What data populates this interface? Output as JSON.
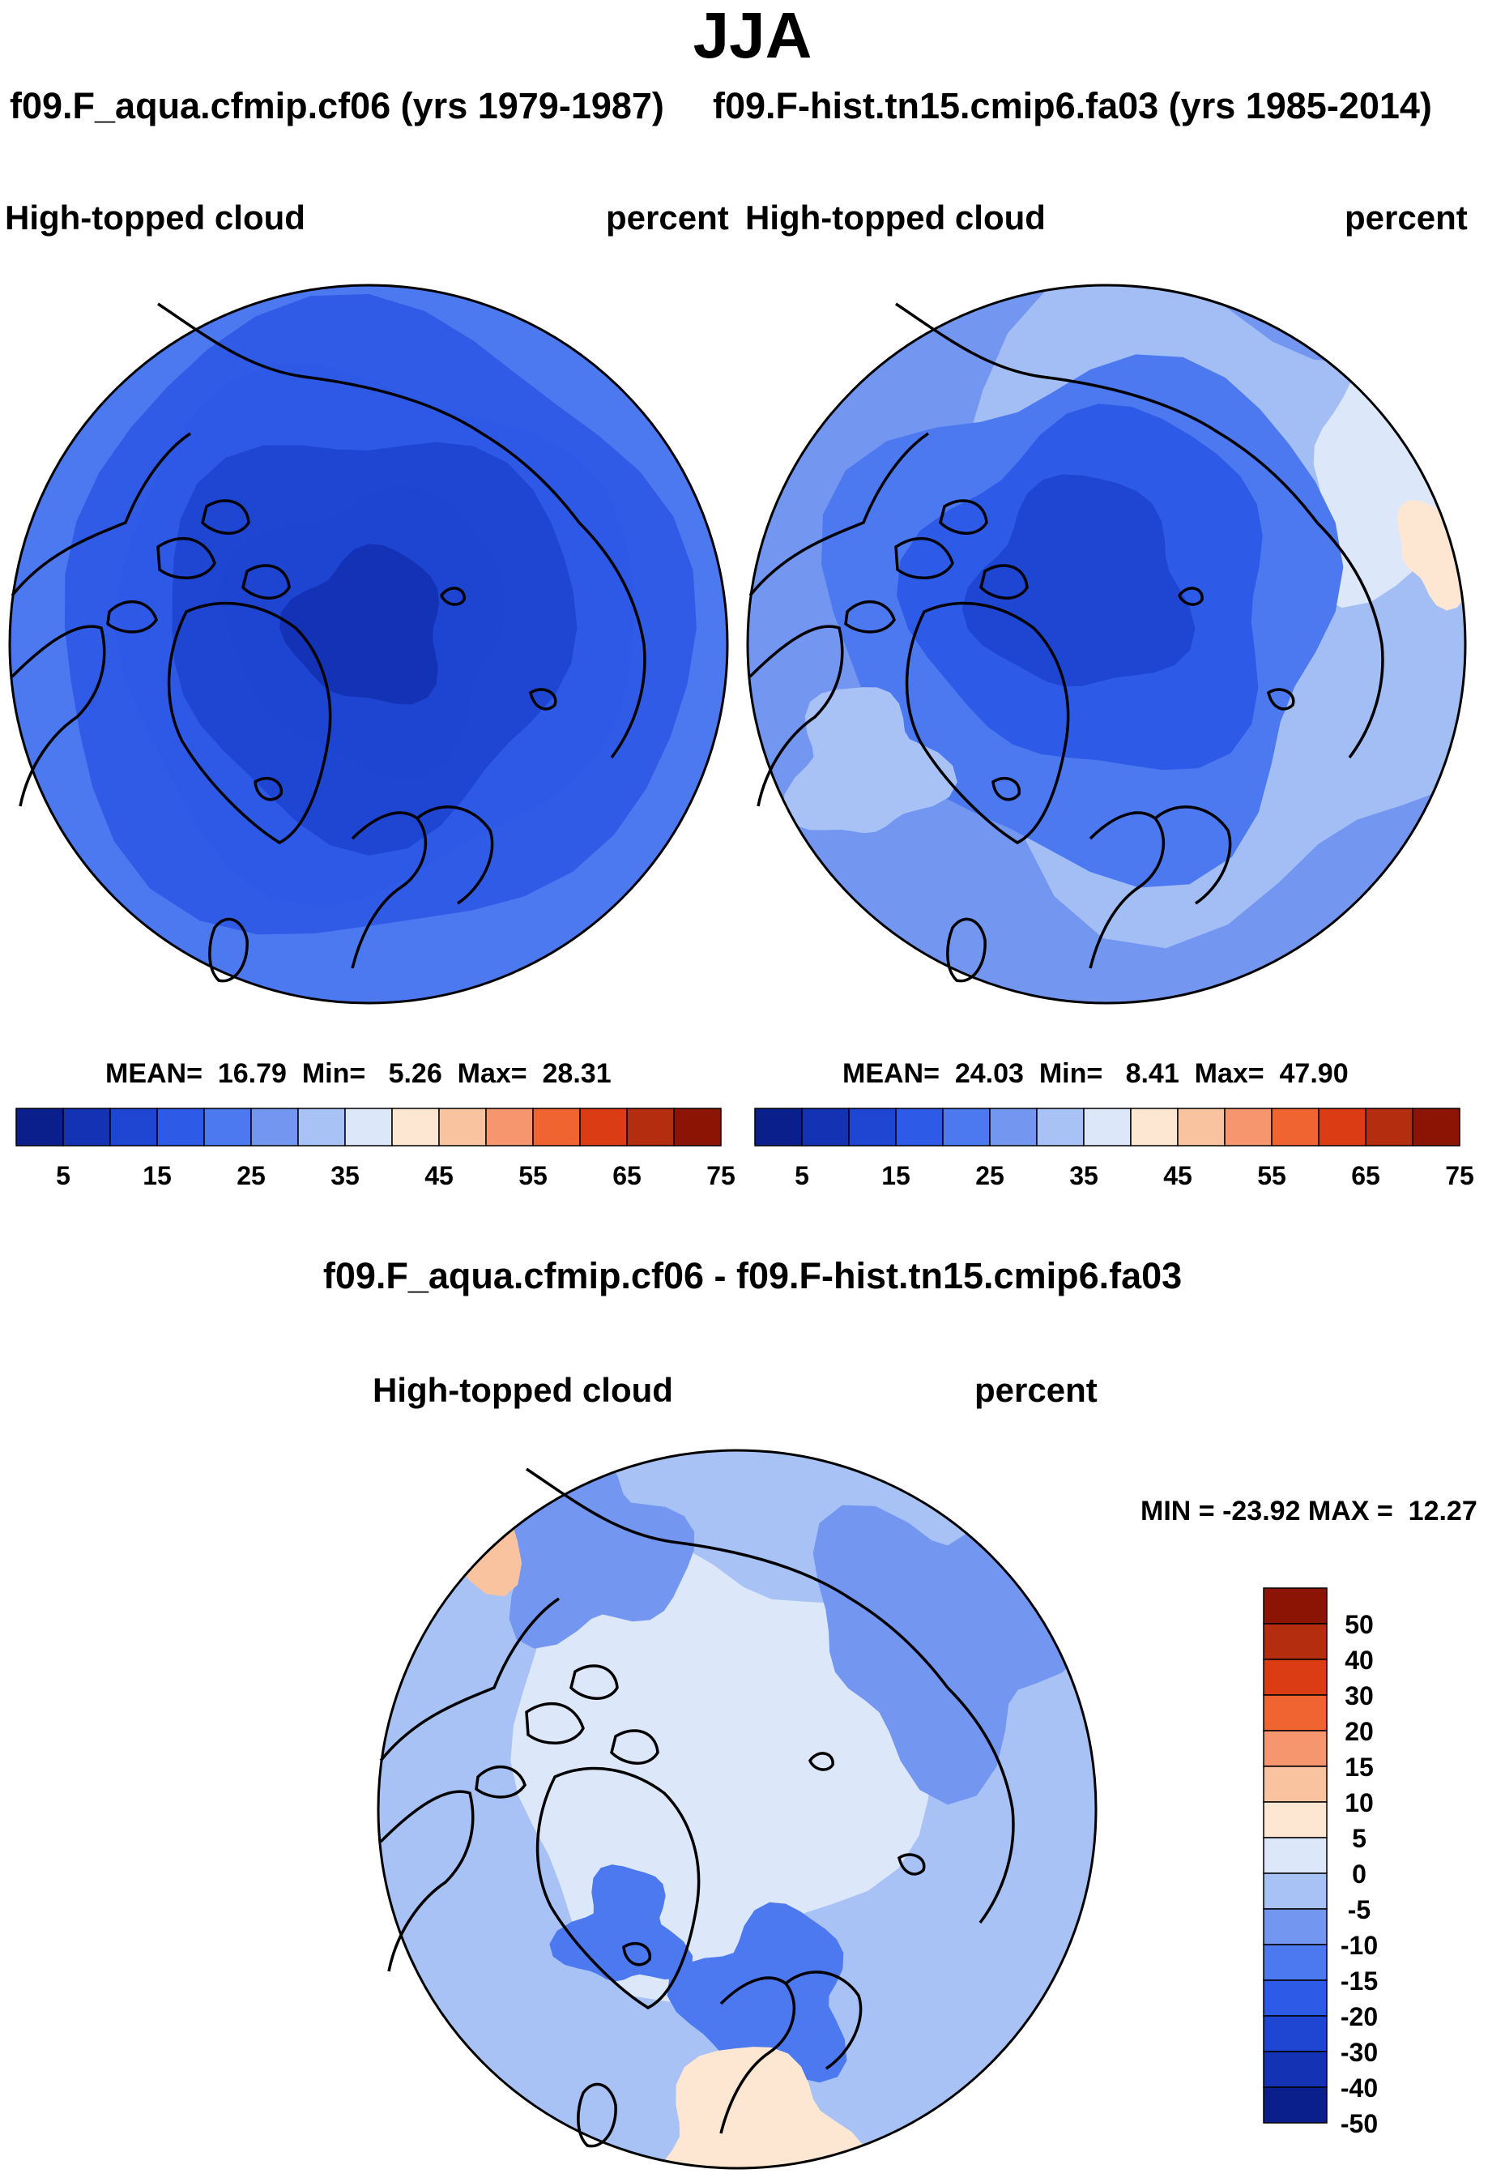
{
  "season": "JJA",
  "colors": {
    "blue_scale": [
      "#0a1e8c",
      "#1432b4",
      "#1e46d2",
      "#2d5ae6",
      "#4c78f0",
      "#7396f0",
      "#a8c2f5",
      "#dce8fa",
      "#fde6d2",
      "#fac3a0",
      "#f5966e",
      "#f06432",
      "#dc3c14",
      "#b42d0f",
      "#8c1405"
    ],
    "diff_scale": [
      "#0a1e8c",
      "#1432b4",
      "#1e46d2",
      "#2d5ae6",
      "#4c78f0",
      "#7396f0",
      "#a8c2f5",
      "#dce8fa",
      "#fde6d2",
      "#fac3a0",
      "#f5966e",
      "#f06432",
      "#dc3c14",
      "#b42d0f",
      "#8c1405"
    ],
    "coastline": "#000000"
  },
  "panels": {
    "left": {
      "case": "f09.F_aqua.cfmip.cf06 (yrs 1979-1987)",
      "variable": "High-topped cloud",
      "units": "percent",
      "stats_line": "MEAN=  16.79  Min=   5.26  Max=  28.31",
      "colorbar_ticks": [
        "5",
        "15",
        "25",
        "35",
        "45",
        "55",
        "65",
        "75"
      ],
      "field_levels": [
        0.3,
        0.25,
        0.2,
        0.12,
        0.08,
        0.04
      ],
      "field_level_indices": [
        4,
        3,
        3,
        2,
        2,
        1
      ]
    },
    "right": {
      "case": "f09.F-hist.tn15.cmip6.fa03 (yrs 1985-2014)",
      "variable": "High-topped cloud",
      "units": "percent",
      "stats_line": "MEAN=  24.03  Min=   8.41  Max=  47.90",
      "colorbar_ticks": [
        "5",
        "15",
        "25",
        "35",
        "45",
        "55",
        "65",
        "75"
      ],
      "field_level_indices": [
        6,
        5,
        4,
        3,
        2
      ]
    },
    "diff": {
      "title": "f09.F_aqua.cfmip.cf06 - f09.F-hist.tn15.cmip6.fa03",
      "variable": "High-topped cloud",
      "units": "percent",
      "stats_line": "MIN = -23.92 MAX =  12.27",
      "colorbar_labels": [
        "50",
        "40",
        "30",
        "20",
        "15",
        "10",
        "5",
        "0",
        "-5",
        "-10",
        "-15",
        "-20",
        "-30",
        "-40",
        "-50"
      ]
    }
  }
}
